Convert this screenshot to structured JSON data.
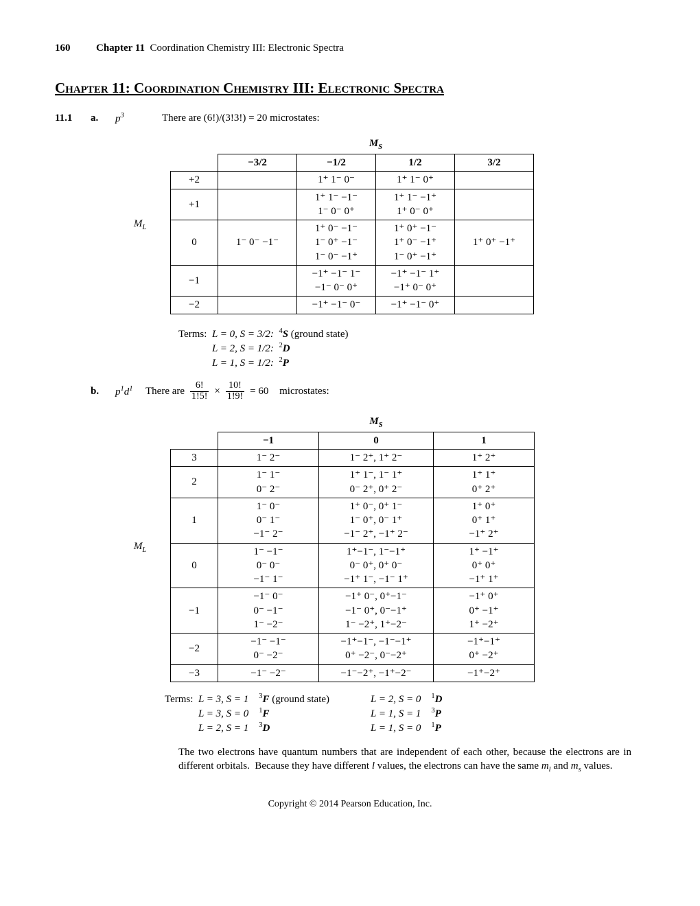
{
  "page_number": "160",
  "chapter_ref": "Chapter 11",
  "chapter_running": "Coordination Chemistry III: Electronic Spectra",
  "chapter_heading": "Chapter 11:  Coordination Chemistry III:  Electronic Spectra",
  "problem": "11.1",
  "part_a": {
    "label": "a.",
    "config": "p",
    "config_sup": "3",
    "text": "There are (6!)/(3!3!) = 20 microstates:"
  },
  "ms_label": "M",
  "ms_sub": "S",
  "ml_label": "M",
  "ml_sub": "L",
  "table_a": {
    "cols": [
      "−3/2",
      "−1/2",
      "1/2",
      "3/2"
    ],
    "rows": [
      {
        "ml": "+2",
        "cells": [
          "",
          "1⁺  1⁻   0⁻",
          "1⁺  1⁻   0⁺",
          ""
        ]
      },
      {
        "ml": "+1",
        "cells": [
          "",
          "1⁺  1⁻ −1⁻\n1⁻  0⁻   0⁺",
          "1⁺  1⁻ −1⁺\n1⁺  0⁻   0⁺",
          ""
        ]
      },
      {
        "ml": "0",
        "cells": [
          "1⁻  0⁻ −1⁻",
          "1⁺  0⁻ −1⁻\n1⁻  0⁺ −1⁻\n1⁻  0⁻ −1⁺",
          "1⁺  0⁺ −1⁻\n1⁺  0⁻ −1⁺\n1⁻  0⁺ −1⁺",
          "1⁺  0⁺ −1⁺"
        ]
      },
      {
        "ml": "−1",
        "cells": [
          "",
          "−1⁺ −1⁻   1⁻\n−1⁻   0⁻   0⁺",
          "−1⁺ −1⁻   1⁺\n−1⁺   0⁻   0⁺",
          ""
        ]
      },
      {
        "ml": "−2",
        "cells": [
          "",
          "−1⁺ −1⁻   0⁻",
          "−1⁺ −1⁻   0⁺",
          ""
        ]
      }
    ]
  },
  "terms_a": {
    "prefix": "Terms:",
    "lines": [
      {
        "LS": "L = 0, S = 3/2:",
        "sup": "4",
        "sym": "S",
        "note": " (ground state)"
      },
      {
        "LS": "L = 2, S = 1/2:",
        "sup": "2",
        "sym": "D",
        "note": ""
      },
      {
        "LS": "L = 1, S = 1/2:",
        "sup": "2",
        "sym": "P",
        "note": ""
      }
    ]
  },
  "part_b": {
    "label": "b.",
    "config_html": "p¹d¹",
    "pre": "There are",
    "frac1": {
      "num": "6!",
      "den": "1!5!"
    },
    "times": "×",
    "frac2": {
      "num": "10!",
      "den": "1!9!"
    },
    "eq": " = 60",
    "post": "microstates:"
  },
  "table_b": {
    "cols": [
      "−1",
      "0",
      "1"
    ],
    "rows": [
      {
        "ml": "3",
        "cells": [
          "1⁻   2⁻",
          "1⁻ 2⁺,   1⁺ 2⁻",
          "1⁺   2⁺"
        ]
      },
      {
        "ml": "2",
        "cells": [
          "1⁻   1⁻\n0⁻   2⁻",
          "1⁺ 1⁻,   1⁻ 1⁺\n0⁻ 2⁺,   0⁺ 2⁻",
          "1⁺   1⁺\n0⁺   2⁺"
        ]
      },
      {
        "ml": "1",
        "cells": [
          "1⁻   0⁻\n0⁻   1⁻\n−1⁻   2⁻",
          "1⁺ 0⁻,   0⁺ 1⁻\n1⁻ 0⁺,   0⁻ 1⁺\n−1⁻ 2⁺, −1⁺ 2⁻",
          "1⁺   0⁺\n0⁺   1⁺\n−1⁺   2⁺"
        ]
      },
      {
        "ml": "0",
        "cells": [
          "1⁻ −1⁻\n0⁻   0⁻\n−1⁻   1⁻",
          "1⁺−1⁻,  1⁻−1⁺\n0⁻  0⁺,  0⁺ 0⁻\n−1⁺ 1⁻, −1⁻ 1⁺",
          "1⁺ −1⁺\n0⁺   0⁺\n−1⁺   1⁺"
        ]
      },
      {
        "ml": "−1",
        "cells": [
          "−1⁻   0⁻\n0⁻ −1⁻\n1⁻ −2⁻",
          "−1⁺ 0⁻,  0⁺−1⁻\n−1⁻  0⁺,  0⁻−1⁺\n1⁻ −2⁺, 1⁺−2⁻",
          "−1⁺   0⁺\n0⁺ −1⁺\n1⁺ −2⁺"
        ]
      },
      {
        "ml": "−2",
        "cells": [
          "−1⁻ −1⁻\n0⁻ −2⁻",
          "−1⁺−1⁻, −1⁻−1⁺\n0⁺ −2⁻, 0⁻−2⁺",
          "−1⁺−1⁺\n0⁺ −2⁺"
        ]
      },
      {
        "ml": "−3",
        "cells": [
          "−1⁻ −2⁻",
          "−1⁻−2⁺, −1⁺−2⁻",
          "−1⁺−2⁺"
        ]
      }
    ]
  },
  "terms_b": {
    "prefix": "Terms:",
    "col1": [
      {
        "LS": "L = 3, S = 1",
        "sup": "3",
        "sym": "F",
        "note": " (ground state)"
      },
      {
        "LS": "L = 3, S = 0",
        "sup": "1",
        "sym": "F",
        "note": ""
      },
      {
        "LS": "L = 2, S = 1",
        "sup": "3",
        "sym": "D",
        "note": ""
      }
    ],
    "col2": [
      {
        "LS": "L = 2, S = 0",
        "sup": "1",
        "sym": "D"
      },
      {
        "LS": "L = 1, S = 1",
        "sup": "3",
        "sym": "P"
      },
      {
        "LS": "L = 1, S = 0",
        "sup": "1",
        "sym": "P"
      }
    ]
  },
  "paragraph": "The two electrons have quantum numbers that are independent of each other, because the electrons are in different orbitals.  Because they have different l values, the electrons can have the same mₗ and mₛ values.",
  "copyright": "Copyright © 2014 Pearson Education, Inc."
}
